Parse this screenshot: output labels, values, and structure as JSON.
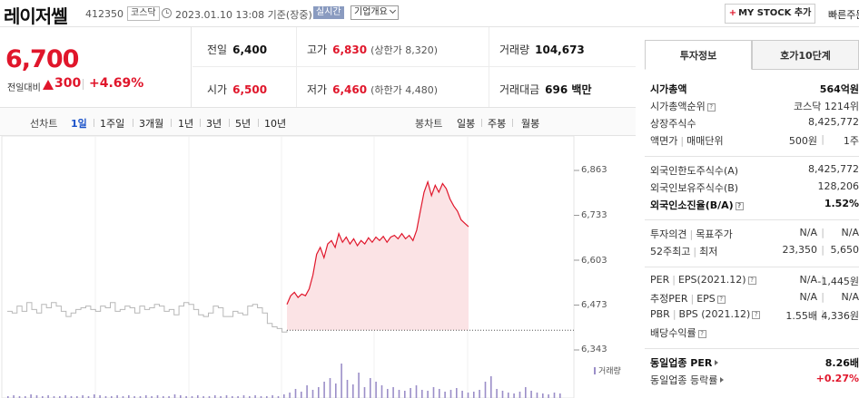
{
  "header": {
    "stock_name": "레이저쎌",
    "stock_code": "412350",
    "market": "코스닥",
    "datetime": "2023.01.10 13:08 기준(장중)",
    "realtime": "실시간",
    "company_overview": "기업개요",
    "mystock_plus": "+",
    "mystock_label": "MY STOCK 추가",
    "quick_order": "빠른주문"
  },
  "price": {
    "current": "6,700",
    "change_label": "전일대비",
    "change_amount": "300",
    "change_rate": "+4.69%"
  },
  "stats": {
    "prev_close_label": "전일",
    "prev_close": "6,400",
    "high_label": "고가",
    "high": "6,830",
    "upper_limit": "(상한가 8,320)",
    "volume_label": "거래량",
    "volume": "104,673",
    "open_label": "시가",
    "open": "6,500",
    "low_label": "저가",
    "low": "6,460",
    "lower_limit": "(하한가 4,480)",
    "amount_label": "거래대금",
    "amount": "696 백만"
  },
  "chart_tabs": {
    "line_title": "선차트",
    "periods": [
      "1일",
      "1주일",
      "3개월",
      "1년",
      "3년",
      "5년",
      "10년"
    ],
    "candle_title": "봉차트",
    "candles": [
      "일봉",
      "주봉",
      "월봉"
    ]
  },
  "chart_data": {
    "type": "line",
    "y_ticks": [
      "6,863",
      "6,733",
      "6,603",
      "6,473",
      "6,343"
    ],
    "ylim": [
      6343,
      6863
    ],
    "reference_line": 6400,
    "volume_legend": "거래량",
    "colors": {
      "today": "#e0162b",
      "fill": "#fbe3e5",
      "history": "#b8b8b8",
      "volume": "#9b8ec8"
    },
    "history_series": [
      6455,
      6450,
      6470,
      6455,
      6480,
      6460,
      6450,
      6475,
      6465,
      6480,
      6470,
      6455,
      6440,
      6450,
      6460,
      6465,
      6470,
      6460,
      6455,
      6470,
      6465,
      6480,
      6455,
      6460,
      6470,
      6465,
      6450,
      6470,
      6460,
      6465,
      6475,
      6470,
      6455,
      6460,
      6445,
      6470,
      6480,
      6475,
      6460,
      6445,
      6440,
      6450,
      6470,
      6465,
      6440,
      6440,
      6455,
      6450,
      6445,
      6470,
      6475,
      6465,
      6450,
      6420,
      6410,
      6405,
      6395,
      6400
    ],
    "today_series": [
      6475,
      6500,
      6510,
      6495,
      6505,
      6500,
      6520,
      6560,
      6620,
      6640,
      6610,
      6650,
      6660,
      6640,
      6680,
      6655,
      6670,
      6650,
      6665,
      6645,
      6660,
      6650,
      6668,
      6655,
      6670,
      6660,
      6672,
      6655,
      6670,
      6675,
      6665,
      6680,
      6665,
      6675,
      6660,
      6690,
      6745,
      6800,
      6830,
      6790,
      6820,
      6800,
      6825,
      6810,
      6780,
      6760,
      6745,
      6720,
      6710,
      6700
    ],
    "volume_series": [
      2,
      3,
      2,
      2,
      4,
      3,
      2,
      3,
      2,
      2,
      3,
      2,
      2,
      3,
      2,
      4,
      3,
      2,
      2,
      3,
      2,
      3,
      2,
      2,
      3,
      2,
      3,
      2,
      2,
      4,
      3,
      2,
      2,
      3,
      2,
      2,
      3,
      2,
      3,
      2,
      2,
      3,
      2,
      3,
      2,
      2,
      3,
      2,
      4,
      6,
      10,
      7,
      14,
      9,
      12,
      18,
      22,
      16,
      38,
      20,
      15,
      28,
      12,
      22,
      18,
      14,
      10,
      12,
      9,
      8,
      11,
      14,
      9,
      8,
      12,
      10,
      7,
      9,
      11,
      8,
      6,
      7,
      9,
      18,
      24,
      10,
      8,
      6,
      5,
      7,
      12,
      8,
      6,
      5,
      4,
      6,
      5
    ]
  },
  "right_panel": {
    "tab_invest": "투자정보",
    "tab_orderbook": "호가10단계",
    "rows": [
      {
        "label": "시가총액",
        "v1": "564억원",
        "strong": true
      },
      {
        "label": "시가총액순위",
        "help": true,
        "v1": "코스닥 1214위"
      },
      {
        "label": "상장주식수",
        "v1": "8,425,772"
      },
      {
        "label": "액면가",
        "label2": "매매단위",
        "v1": "500원",
        "v2": "1주"
      },
      {
        "label": "외국인한도주식수(A)",
        "v1": "8,425,772"
      },
      {
        "label": "외국인보유주식수(B)",
        "v1": "128,206"
      },
      {
        "label": "외국인소진율(B/A)",
        "help": true,
        "v1": "1.52%",
        "strong": true
      },
      {
        "label": "투자의견",
        "label2": "목표주가",
        "v1": "N/A",
        "v2": "N/A"
      },
      {
        "label": "52주최고",
        "label2": "최저",
        "v1": "23,350",
        "v2": "5,650"
      },
      {
        "label": "PER",
        "label2": "EPS(2021.12)",
        "v1": "N/A",
        "v2": "-1,445원"
      },
      {
        "label": "추정PER",
        "label2": "EPS",
        "v1": "N/A",
        "v2": "N/A"
      },
      {
        "label": "PBR",
        "label2": "BPS (2021.12)",
        "v1": "1.55배",
        "v2": "4,336원"
      },
      {
        "label": "배당수익률",
        "v1": ""
      },
      {
        "label": "동일업종 PER",
        "v1": "8.26배",
        "strong": true
      },
      {
        "label": "동일업종 등락률",
        "v1": "+0.27%",
        "red": true
      }
    ]
  }
}
